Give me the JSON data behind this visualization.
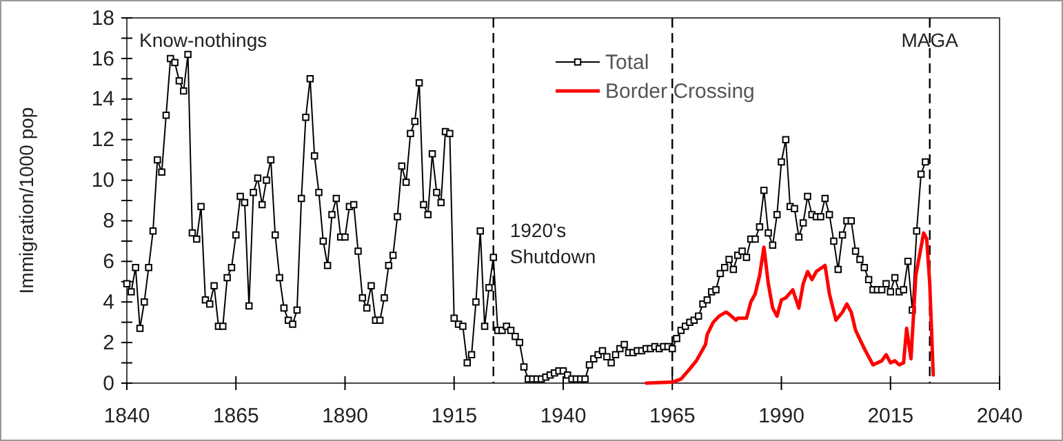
{
  "chart_data": {
    "type": "line",
    "ylabel": "Immigration/1000 pop",
    "xlim": [
      1840,
      2040
    ],
    "xticks": [
      1840,
      1865,
      1890,
      1915,
      1940,
      1965,
      1990,
      2015,
      2040
    ],
    "ylim": [
      0,
      18
    ],
    "yticks": [
      0,
      {
        "value": 1,
        "label": null
      },
      2,
      {
        "value": 3,
        "label": null
      },
      4,
      {
        "value": 5,
        "label": null
      },
      6,
      {
        "value": 7,
        "label": null
      },
      8,
      {
        "value": 9,
        "label": null
      },
      10,
      {
        "value": 11,
        "label": null
      },
      12,
      {
        "value": 13,
        "label": null
      },
      14,
      {
        "value": 15,
        "label": null
      },
      16,
      {
        "value": 17,
        "label": null
      },
      18
    ],
    "grid": false,
    "legend": "top",
    "line_style": "solid",
    "annotations": [
      "Know-nothings"
    ],
    "ref_lines": [
      {
        "axis": "x",
        "value": 1924,
        "label": "1920's Shutdown",
        "line_style": "dashed",
        "color": "#000000"
      },
      {
        "axis": "x",
        "value": 1965,
        "line_style": "dashed",
        "color": "#000000"
      },
      {
        "axis": "x",
        "value": 2024,
        "label": "MAGA",
        "line_style": "dashed",
        "color": "#000000"
      }
    ],
    "series": [
      {
        "name": "Total",
        "color": "#000000",
        "marker": "square",
        "x": [
          1840,
          1841,
          1842,
          1843,
          1844,
          1845,
          1846,
          1847,
          1848,
          1849,
          1850,
          1851,
          1852,
          1853,
          1854,
          1855,
          1856,
          1857,
          1858,
          1859,
          1860,
          1861,
          1862,
          1863,
          1864,
          1865,
          1866,
          1867,
          1868,
          1869,
          1870,
          1871,
          1872,
          1873,
          1874,
          1875,
          1876,
          1877,
          1878,
          1879,
          1880,
          1881,
          1882,
          1883,
          1884,
          1885,
          1886,
          1887,
          1888,
          1889,
          1890,
          1891,
          1892,
          1893,
          1894,
          1895,
          1896,
          1897,
          1898,
          1899,
          1900,
          1901,
          1902,
          1903,
          1904,
          1905,
          1906,
          1907,
          1908,
          1909,
          1910,
          1911,
          1912,
          1913,
          1914,
          1915,
          1916,
          1917,
          1918,
          1919,
          1920,
          1921,
          1922,
          1923,
          1924,
          1925,
          1926,
          1927,
          1928,
          1929,
          1930,
          1931,
          1932,
          1933,
          1934,
          1935,
          1936,
          1937,
          1938,
          1939,
          1940,
          1941,
          1942,
          1943,
          1944,
          1945,
          1946,
          1947,
          1948,
          1949,
          1950,
          1951,
          1952,
          1953,
          1954,
          1955,
          1956,
          1957,
          1958,
          1959,
          1960,
          1961,
          1962,
          1963,
          1964,
          1965,
          1966,
          1967,
          1968,
          1969,
          1970,
          1971,
          1972,
          1973,
          1974,
          1975,
          1976,
          1977,
          1978,
          1979,
          1980,
          1981,
          1982,
          1983,
          1984,
          1985,
          1986,
          1987,
          1988,
          1989,
          1990,
          1991,
          1992,
          1993,
          1994,
          1995,
          1996,
          1997,
          1998,
          1999,
          2000,
          2001,
          2002,
          2003,
          2004,
          2005,
          2006,
          2007,
          2008,
          2009,
          2010,
          2011,
          2012,
          2013,
          2014,
          2015,
          2016,
          2017,
          2018,
          2019,
          2020,
          2021,
          2022,
          2023
        ],
        "values": [
          4.9,
          4.5,
          5.7,
          2.7,
          4.0,
          5.7,
          7.5,
          11.0,
          10.4,
          13.2,
          16.0,
          15.8,
          14.9,
          14.4,
          16.2,
          7.4,
          7.1,
          8.7,
          4.1,
          3.9,
          4.8,
          2.8,
          2.8,
          5.2,
          5.7,
          7.3,
          9.2,
          8.9,
          3.8,
          9.4,
          10.1,
          8.8,
          10.0,
          11.0,
          7.3,
          5.2,
          3.7,
          3.1,
          2.9,
          3.6,
          9.1,
          13.1,
          15.0,
          11.2,
          9.4,
          7.0,
          5.8,
          8.3,
          9.1,
          7.2,
          7.2,
          8.7,
          8.8,
          6.5,
          4.2,
          3.7,
          4.8,
          3.1,
          3.1,
          4.2,
          5.8,
          6.3,
          8.2,
          10.7,
          9.9,
          12.3,
          12.9,
          14.8,
          8.8,
          8.3,
          11.3,
          9.4,
          8.9,
          12.4,
          12.3,
          3.2,
          2.9,
          2.8,
          1.0,
          1.4,
          4.0,
          7.5,
          2.8,
          4.7,
          6.2,
          2.6,
          2.6,
          2.8,
          2.6,
          2.3,
          2.0,
          0.8,
          0.2,
          0.2,
          0.2,
          0.2,
          0.3,
          0.4,
          0.5,
          0.6,
          0.6,
          0.4,
          0.2,
          0.2,
          0.2,
          0.2,
          0.9,
          1.2,
          1.4,
          1.6,
          1.3,
          1.0,
          1.4,
          1.7,
          1.9,
          1.5,
          1.5,
          1.6,
          1.6,
          1.7,
          1.7,
          1.8,
          1.7,
          1.8,
          1.8,
          1.7,
          2.2,
          2.6,
          2.8,
          3.0,
          3.1,
          3.3,
          3.9,
          4.1,
          4.5,
          4.6,
          5.4,
          5.7,
          6.1,
          5.6,
          6.3,
          6.5,
          6.2,
          7.1,
          7.1,
          7.7,
          9.5,
          7.4,
          6.8,
          8.3,
          10.9,
          12.0,
          8.7,
          8.6,
          7.2,
          7.9,
          9.2,
          8.3,
          8.2,
          8.2,
          9.1,
          8.3,
          7.0,
          5.6,
          7.3,
          8.0,
          8.0,
          6.5,
          6.1,
          5.7,
          5.1,
          4.6,
          4.6,
          4.6,
          4.9,
          4.5,
          5.2,
          4.5,
          4.6,
          6.0,
          3.6,
          7.5,
          10.3,
          10.9
        ]
      },
      {
        "name": "Border Crossing",
        "color": "#ff0000",
        "marker": "none",
        "x": [
          1959,
          1965,
          1967,
          1969,
          1970.5,
          1972.6,
          1973,
          1974.4,
          1975.7,
          1977.3,
          1978,
          1979.6,
          1980,
          1982,
          1983,
          1984,
          1985,
          1986,
          1987,
          1988,
          1989,
          1990,
          1991,
          1992.6,
          1994,
          1995,
          1996,
          1997,
          1998,
          2000,
          2001,
          2002.5,
          2004,
          2005,
          2006,
          2007,
          2009,
          2011,
          2013,
          2014,
          2015,
          2016,
          2017,
          2018,
          2018.7,
          2019.7,
          2020.8,
          2022.6,
          2023.3,
          2024,
          2024.8
        ],
        "values": [
          0,
          0.05,
          0.2,
          0.7,
          1.1,
          1.9,
          2.4,
          3.0,
          3.3,
          3.5,
          3.4,
          3.1,
          3.2,
          3.2,
          4.0,
          4.4,
          5.3,
          6.7,
          4.9,
          3.7,
          3.3,
          4.1,
          4.2,
          4.6,
          3.7,
          4.9,
          5.5,
          5.1,
          5.5,
          5.8,
          4.4,
          3.1,
          3.5,
          3.9,
          3.5,
          2.6,
          1.7,
          0.9,
          1.1,
          1.4,
          1.0,
          1.1,
          0.9,
          1.0,
          2.7,
          1.2,
          5.3,
          7.4,
          7.1,
          4.9,
          0.4
        ]
      }
    ]
  }
}
